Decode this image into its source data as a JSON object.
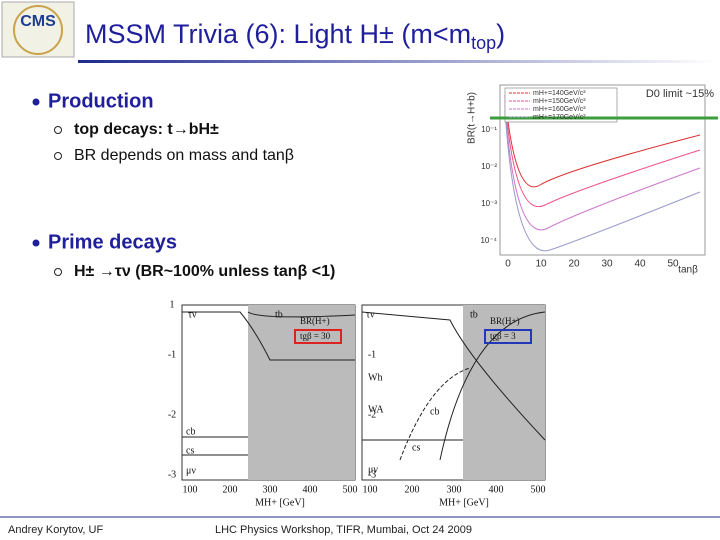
{
  "header": {
    "logo": "CMS",
    "title": {
      "main": "MSSM Trivia (6): Light H± (m<m",
      "sub": "top",
      "end": ")"
    }
  },
  "sections": [
    {
      "heading": "Production",
      "items": [
        "top decays: t→bH±",
        "BR depends on mass and tanβ"
      ]
    },
    {
      "heading": "Prime decays",
      "items": [
        "H± →τν (BR~100% unless tanβ <1)"
      ]
    }
  ],
  "top_plot": {
    "note": "D0 limit ~15%",
    "y_label": "BR(t→H+b)",
    "legend": [
      "mH+=140GeV/c²",
      "mH+=150GeV/c²",
      "mH+=160GeV/c²",
      "mH+=170GeV/c²"
    ],
    "y_ticks": [
      "10⁻¹",
      "10⁻²",
      "10⁻³",
      "10⁻⁴"
    ],
    "x_ticks": [
      "0",
      "10",
      "20",
      "30",
      "40",
      "50"
    ],
    "x_label": "tanβ"
  },
  "bottom_plots": [
    {
      "labels": [
        "τν",
        "tb",
        "BR(H+)",
        "tgβ = 30",
        "cb",
        "cs",
        "μν"
      ],
      "y_ticks": [
        "1",
        "-1",
        "-2",
        "-3"
      ],
      "x_ticks": [
        "100",
        "200",
        "300",
        "400",
        "500"
      ],
      "x_label": "MH+ [GeV]"
    },
    {
      "labels": [
        "τν",
        "tb",
        "BR(H+)",
        "tgβ = 3",
        "Wh",
        "WA",
        "cb",
        "cs",
        "μν"
      ],
      "y_ticks": [
        "-1",
        "-2",
        "-3"
      ],
      "x_ticks": [
        "100",
        "200",
        "300",
        "400",
        "500"
      ],
      "x_label": "MH+ [GeV]"
    }
  ],
  "footer": {
    "author": "Andrey Korytov, UF",
    "event": "LHC Physics Workshop, TIFR, Mumbai, Oct 24 2009"
  }
}
